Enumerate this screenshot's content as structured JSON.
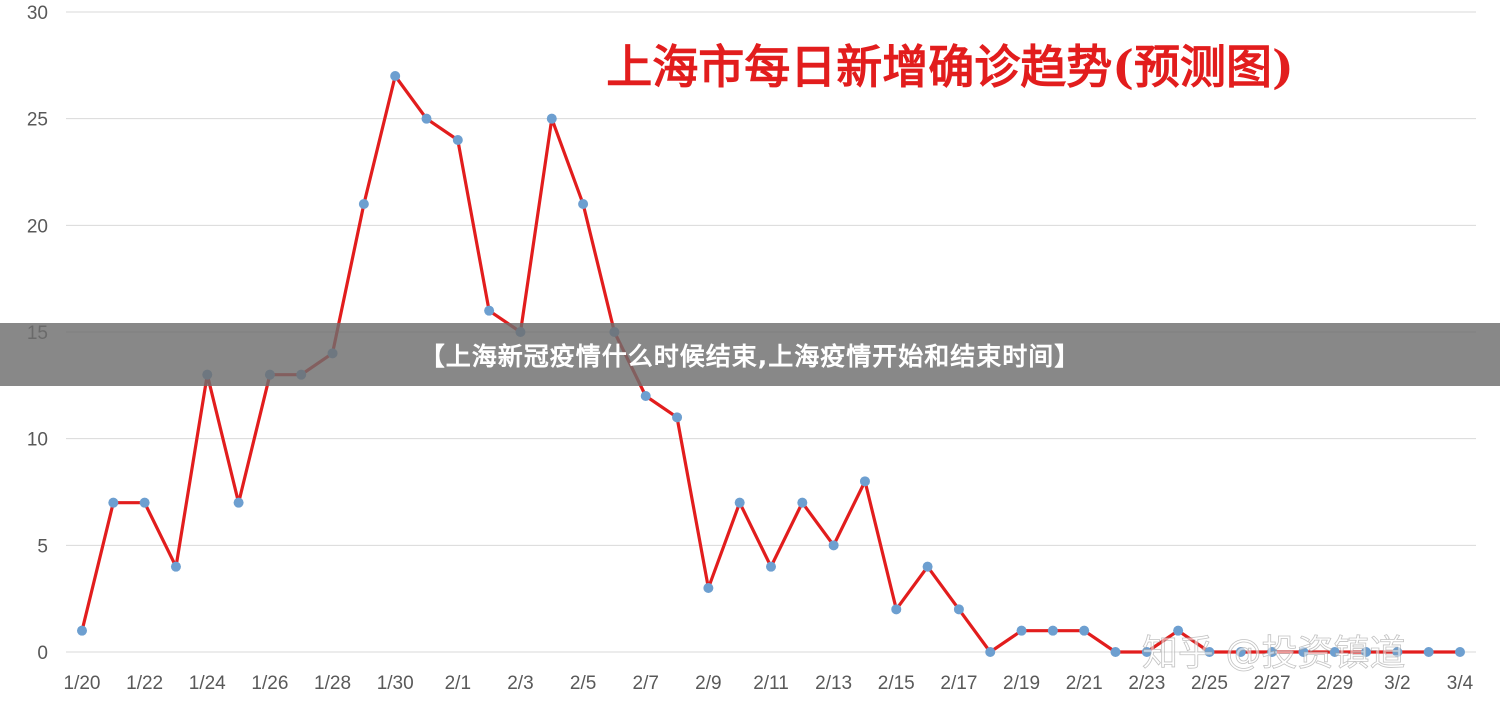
{
  "banner": {
    "text": "【上海新冠疫情什么时候结束,上海疫情开始和结束时间】"
  },
  "watermark": {
    "text": "知乎 @投资镇道"
  },
  "colors": {
    "line": "#e21d1d",
    "marker": "#6d9fd0",
    "grid": "#d9d9d9",
    "tick": "#595959"
  },
  "chart_data": {
    "type": "line",
    "title": "上海市每日新增确诊趋势(预测图)",
    "xlabel": "",
    "ylabel": "",
    "ylim": [
      0,
      30
    ],
    "yticks": [
      0,
      5,
      10,
      15,
      20,
      25,
      30
    ],
    "grid": true,
    "legend": "none",
    "x": [
      "1/20",
      "1/21",
      "1/22",
      "1/23",
      "1/24",
      "1/25",
      "1/26",
      "1/27",
      "1/28",
      "1/29",
      "1/30",
      "1/31",
      "2/1",
      "2/2",
      "2/3",
      "2/4",
      "2/5",
      "2/6",
      "2/7",
      "2/8",
      "2/9",
      "2/10",
      "2/11",
      "2/12",
      "2/13",
      "2/14",
      "2/15",
      "2/16",
      "2/17",
      "2/18",
      "2/19",
      "2/20",
      "2/21",
      "2/22",
      "2/23",
      "2/24",
      "2/25",
      "2/26",
      "2/27",
      "2/28",
      "2/29",
      "3/1",
      "3/2",
      "3/3",
      "3/4"
    ],
    "xtick_labels": [
      "1/20",
      "1/22",
      "1/24",
      "1/26",
      "1/28",
      "1/30",
      "2/1",
      "2/3",
      "2/5",
      "2/7",
      "2/9",
      "2/11",
      "2/13",
      "2/15",
      "2/17",
      "2/19",
      "2/21",
      "2/23",
      "2/25",
      "2/27",
      "2/29",
      "3/2",
      "3/4"
    ],
    "series": [
      {
        "values": [
          1,
          7,
          7,
          4,
          13,
          7,
          13,
          13,
          14,
          21,
          27,
          25,
          24,
          16,
          15,
          25,
          21,
          15,
          12,
          11,
          3,
          7,
          4,
          7,
          5,
          8,
          2,
          4,
          2,
          0,
          1,
          1,
          1,
          0,
          0,
          1,
          0,
          0,
          0,
          0,
          0,
          0,
          0,
          0,
          0
        ]
      }
    ]
  }
}
